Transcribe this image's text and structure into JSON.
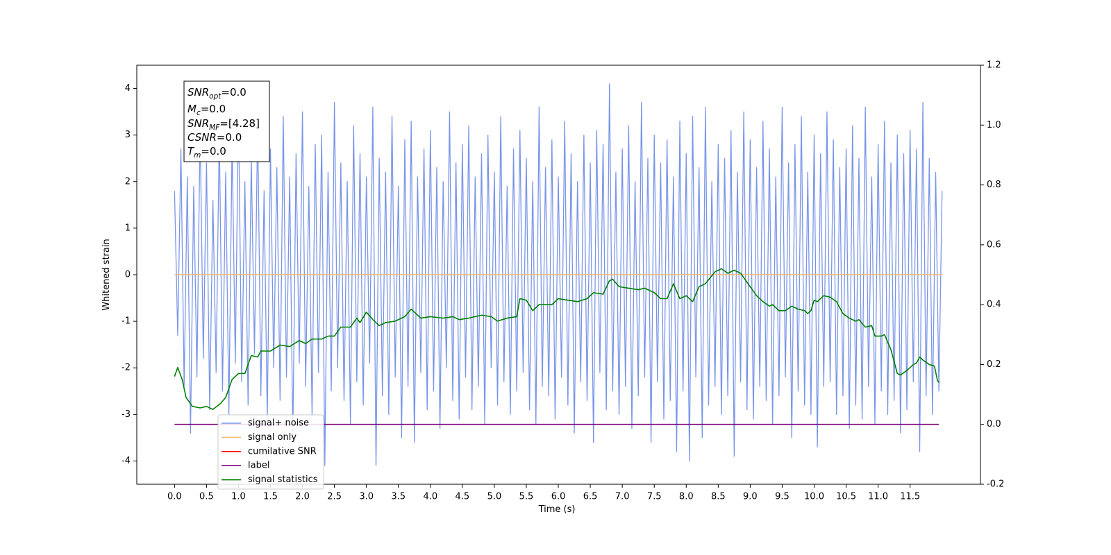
{
  "chart_data": {
    "type": "line",
    "xlabel": "Time (s)",
    "ylabel": "Whitened strain",
    "xlim": [
      -0.59,
      12.6
    ],
    "ylim": [
      -4.5,
      4.5
    ],
    "y2lim": [
      -0.2,
      1.2
    ],
    "xticks": [
      {
        "value": 0,
        "label": "0.0"
      },
      {
        "value": 0.5,
        "label": "0.5"
      },
      {
        "value": 1,
        "label": "1.0"
      },
      {
        "value": 1.5,
        "label": "1.5"
      },
      {
        "value": 2,
        "label": "2.0"
      },
      {
        "value": 2.5,
        "label": "2.5"
      },
      {
        "value": 3,
        "label": "3.0"
      },
      {
        "value": 3.5,
        "label": "3.5"
      },
      {
        "value": 4,
        "label": "4.0"
      },
      {
        "value": 4.5,
        "label": "4.5"
      },
      {
        "value": 5,
        "label": "5.0"
      },
      {
        "value": 5.5,
        "label": "5.5"
      },
      {
        "value": 6,
        "label": "6.0"
      },
      {
        "value": 6.5,
        "label": "6.5"
      },
      {
        "value": 7,
        "label": "7.0"
      },
      {
        "value": 7.5,
        "label": "7.5"
      },
      {
        "value": 8,
        "label": "8.0"
      },
      {
        "value": 8.5,
        "label": "8.5"
      },
      {
        "value": 9,
        "label": "9.0"
      },
      {
        "value": 9.5,
        "label": "9.5"
      },
      {
        "value": 10,
        "label": "10.0"
      },
      {
        "value": 10.5,
        "label": "10.5"
      },
      {
        "value": 11,
        "label": "11.0"
      },
      {
        "value": 11.5,
        "label": "11.5"
      }
    ],
    "yticks": [
      -4,
      -3,
      -2,
      -1,
      0,
      1,
      2,
      3,
      4
    ],
    "y2ticks": [
      -0.2,
      {
        "value": 0,
        "label": "0.0"
      },
      0.2,
      0.4,
      0.6,
      0.8,
      {
        "value": 1,
        "label": "1.0"
      },
      1.2
    ],
    "annotation": [
      {
        "text": "SNR",
        "sub": "opt",
        "value": "=0.0"
      },
      {
        "text": "M",
        "sub": "c",
        "value": "=0.0"
      },
      {
        "text": "SNR",
        "sub": "MF",
        "value": "=[4.28]"
      },
      {
        "text": "CSNR",
        "value": "=0.0"
      },
      {
        "text": "T",
        "sub": "m",
        "value": "=0.0"
      }
    ],
    "series": [
      {
        "name": "signal+ noise",
        "color": "#7995e8",
        "width": 1.3,
        "x": [
          0,
          0.05,
          0.1,
          0.15,
          0.2,
          0.25,
          0.3,
          0.35,
          0.4,
          0.45,
          0.5,
          0.55,
          0.6,
          0.65,
          0.7,
          0.75,
          0.8,
          0.85,
          0.9,
          0.95,
          1,
          1.05,
          1.1,
          1.15,
          1.2,
          1.25,
          1.3,
          1.35,
          1.4,
          1.45,
          1.5,
          1.55,
          1.6,
          1.65,
          1.7,
          1.75,
          1.8,
          1.85,
          1.9,
          1.95,
          2,
          2.05,
          2.1,
          2.15,
          2.2,
          2.25,
          2.3,
          2.35,
          2.4,
          2.45,
          2.5,
          2.55,
          2.6,
          2.65,
          2.7,
          2.75,
          2.8,
          2.85,
          2.9,
          2.95,
          3,
          3.05,
          3.1,
          3.15,
          3.2,
          3.25,
          3.3,
          3.35,
          3.4,
          3.45,
          3.5,
          3.55,
          3.6,
          3.65,
          3.7,
          3.75,
          3.8,
          3.85,
          3.9,
          3.95,
          4,
          4.05,
          4.1,
          4.15,
          4.2,
          4.25,
          4.3,
          4.35,
          4.4,
          4.45,
          4.5,
          4.55,
          4.6,
          4.65,
          4.7,
          4.75,
          4.8,
          4.85,
          4.9,
          4.95,
          5,
          5.05,
          5.1,
          5.15,
          5.2,
          5.25,
          5.3,
          5.35,
          5.4,
          5.45,
          5.5,
          5.55,
          5.6,
          5.65,
          5.7,
          5.75,
          5.8,
          5.85,
          5.9,
          5.95,
          6,
          6.05,
          6.1,
          6.15,
          6.2,
          6.25,
          6.3,
          6.35,
          6.4,
          6.45,
          6.5,
          6.55,
          6.6,
          6.65,
          6.7,
          6.75,
          6.8,
          6.85,
          6.9,
          6.95,
          7,
          7.05,
          7.1,
          7.15,
          7.2,
          7.25,
          7.3,
          7.35,
          7.4,
          7.45,
          7.5,
          7.55,
          7.6,
          7.65,
          7.7,
          7.75,
          7.8,
          7.85,
          7.9,
          7.95,
          8,
          8.05,
          8.1,
          8.15,
          8.2,
          8.25,
          8.3,
          8.35,
          8.4,
          8.45,
          8.5,
          8.55,
          8.6,
          8.65,
          8.7,
          8.75,
          8.8,
          8.85,
          8.9,
          8.95,
          9,
          9.05,
          9.1,
          9.15,
          9.2,
          9.25,
          9.3,
          9.35,
          9.4,
          9.45,
          9.5,
          9.55,
          9.6,
          9.65,
          9.7,
          9.75,
          9.8,
          9.85,
          9.9,
          9.95,
          10,
          10.05,
          10.1,
          10.15,
          10.2,
          10.25,
          10.3,
          10.35,
          10.4,
          10.45,
          10.5,
          10.55,
          10.6,
          10.65,
          10.7,
          10.75,
          10.8,
          10.85,
          10.9,
          10.95,
          11,
          11.05,
          11.1,
          11.15,
          11.2,
          11.25,
          11.3,
          11.35,
          11.4,
          11.45,
          11.5,
          11.55,
          11.6,
          11.65,
          11.7,
          11.75,
          11.8,
          11.85,
          11.9,
          11.95,
          12
        ],
        "values": [
          1.8,
          -1.3,
          2.7,
          -2.4,
          2.1,
          -3.4,
          1.9,
          -2.2,
          3.2,
          -1.8,
          2.4,
          -2.9,
          1.6,
          -2.1,
          3.1,
          -2.5,
          2.2,
          -3.0,
          2.9,
          -1.9,
          3.6,
          -2.3,
          2.0,
          -2.8,
          2.5,
          -1.7,
          3.3,
          -2.6,
          1.8,
          -3.1,
          2.7,
          -2.0,
          2.3,
          -2.7,
          3.4,
          -2.2,
          2.1,
          -3.5,
          2.6,
          -1.9,
          3.5,
          -2.4,
          1.9,
          -3.0,
          2.8,
          -2.1,
          3.0,
          -4.1,
          2.2,
          -2.5,
          3.7,
          -2.0,
          2.4,
          -2.7,
          2.0,
          -3.2,
          3.2,
          -2.3,
          2.6,
          -2.8,
          2.1,
          -1.9,
          3.6,
          -4.1,
          2.5,
          -2.6,
          2.2,
          -3.0,
          3.4,
          -2.2,
          1.9,
          -3.5,
          2.9,
          -2.4,
          3.3,
          -3.6,
          2.1,
          -2.1,
          2.7,
          -2.9,
          3.1,
          -2.5,
          2.3,
          -3.3,
          2.0,
          -2.0,
          3.5,
          -2.7,
          2.4,
          -3.1,
          2.8,
          -2.2,
          3.2,
          -2.9,
          2.1,
          -2.4,
          2.6,
          -3.2,
          3.0,
          -2.0,
          2.2,
          -2.8,
          3.4,
          -2.3,
          1.9,
          -3.0,
          2.7,
          -2.5,
          3.1,
          -2.1,
          2.5,
          -2.9,
          2.0,
          -3.2,
          3.6,
          -2.4,
          2.3,
          -2.6,
          2.9,
          -3.1,
          2.1,
          -2.2,
          3.3,
          -2.8,
          2.6,
          -3.4,
          2.0,
          -2.3,
          3.0,
          -2.7,
          2.4,
          -3.6,
          3.1,
          -2.1,
          2.8,
          -2.9,
          4.1,
          -2.5,
          2.2,
          -3.0,
          2.7,
          -2.4,
          3.2,
          -3.3,
          2.0,
          -2.6,
          3.7,
          -2.2,
          2.5,
          -3.6,
          3.0,
          -2.3,
          2.4,
          -3.1,
          2.9,
          -2.7,
          2.1,
          -3.8,
          3.3,
          -2.5,
          2.6,
          -4.0,
          3.4,
          -2.2,
          2.3,
          -3.5,
          3.6,
          -2.8,
          2.0,
          -2.4,
          2.8,
          -3.0,
          2.5,
          -2.6,
          3.1,
          -3.9,
          2.2,
          -2.3,
          3.5,
          -2.9,
          2.9,
          -3.1,
          2.3,
          -2.4,
          3.3,
          -2.7,
          2.7,
          -3.2,
          2.1,
          -2.6,
          3.6,
          -2.2,
          2.4,
          -3.5,
          2.8,
          -2.5,
          3.4,
          -2.8,
          2.2,
          -3.0,
          3.0,
          -3.7,
          2.6,
          -2.4,
          3.5,
          -2.3,
          2.9,
          -3.0,
          2.3,
          -2.6,
          2.7,
          -3.3,
          3.2,
          -2.8,
          2.5,
          -3.1,
          3.6,
          -2.4,
          2.1,
          -3.2,
          2.8,
          -2.5,
          3.3,
          -3.0,
          2.4,
          -2.7,
          3.0,
          -3.4,
          2.6,
          -2.9,
          3.1,
          -2.3,
          2.7,
          -3.8,
          3.7,
          -2.6,
          2.5,
          -3.0,
          2.2,
          -2.5,
          1.8
        ]
      },
      {
        "name": "signal only",
        "color": "#f5b870",
        "width": 1.5,
        "x": [
          0,
          12
        ],
        "values": [
          0,
          0
        ]
      },
      {
        "name": "cumilative SNR",
        "color": "#ff0000"
      },
      {
        "name": "label",
        "color": "#800080",
        "width": 1.6,
        "axis": "y2",
        "x": [
          0,
          11.95
        ],
        "values": [
          0,
          0
        ]
      },
      {
        "name": "signal statistics",
        "color": "#008000",
        "width": 1.6,
        "axis": "y2",
        "x": [
          0,
          0.05,
          0.12,
          0.18,
          0.28,
          0.4,
          0.5,
          0.6,
          0.72,
          0.8,
          0.9,
          1.0,
          1.1,
          1.2,
          1.3,
          1.35,
          1.5,
          1.65,
          1.8,
          1.95,
          2.05,
          2.15,
          2.3,
          2.4,
          2.5,
          2.6,
          2.75,
          2.85,
          2.9,
          3.0,
          3.1,
          3.2,
          3.3,
          3.45,
          3.6,
          3.7,
          3.85,
          4.0,
          4.2,
          4.35,
          4.45,
          4.6,
          4.8,
          4.95,
          5.05,
          5.2,
          5.35,
          5.4,
          5.5,
          5.6,
          5.7,
          5.9,
          6.0,
          6.15,
          6.3,
          6.45,
          6.55,
          6.7,
          6.8,
          6.85,
          6.95,
          7.1,
          7.25,
          7.35,
          7.5,
          7.6,
          7.7,
          7.8,
          7.9,
          8.0,
          8.1,
          8.2,
          8.3,
          8.45,
          8.55,
          8.65,
          8.75,
          8.85,
          9.0,
          9.1,
          9.2,
          9.3,
          9.35,
          9.45,
          9.55,
          9.65,
          9.75,
          9.85,
          9.9,
          9.95,
          10.0,
          10.05,
          10.15,
          10.25,
          10.35,
          10.45,
          10.55,
          10.65,
          10.7,
          10.8,
          10.9,
          10.95,
          11.05,
          11.1,
          11.2,
          11.3,
          11.35,
          11.45,
          11.55,
          11.6,
          11.65,
          11.7,
          11.8,
          11.88,
          11.93,
          11.96
        ],
        "values": [
          0.16,
          0.19,
          0.15,
          0.09,
          0.06,
          0.055,
          0.06,
          0.05,
          0.07,
          0.09,
          0.15,
          0.17,
          0.17,
          0.23,
          0.225,
          0.245,
          0.245,
          0.265,
          0.26,
          0.28,
          0.27,
          0.285,
          0.285,
          0.295,
          0.295,
          0.325,
          0.325,
          0.355,
          0.34,
          0.375,
          0.35,
          0.33,
          0.34,
          0.345,
          0.36,
          0.385,
          0.355,
          0.36,
          0.355,
          0.36,
          0.35,
          0.355,
          0.365,
          0.36,
          0.345,
          0.355,
          0.36,
          0.42,
          0.415,
          0.38,
          0.4,
          0.4,
          0.42,
          0.415,
          0.41,
          0.42,
          0.44,
          0.435,
          0.48,
          0.485,
          0.46,
          0.455,
          0.45,
          0.455,
          0.44,
          0.42,
          0.42,
          0.47,
          0.42,
          0.43,
          0.41,
          0.46,
          0.47,
          0.51,
          0.52,
          0.505,
          0.515,
          0.505,
          0.46,
          0.43,
          0.41,
          0.395,
          0.4,
          0.38,
          0.38,
          0.395,
          0.385,
          0.38,
          0.37,
          0.38,
          0.415,
          0.41,
          0.43,
          0.425,
          0.41,
          0.37,
          0.355,
          0.345,
          0.35,
          0.325,
          0.33,
          0.295,
          0.295,
          0.3,
          0.25,
          0.17,
          0.165,
          0.18,
          0.2,
          0.205,
          0.225,
          0.215,
          0.2,
          0.195,
          0.145,
          0.14
        ]
      }
    ]
  }
}
